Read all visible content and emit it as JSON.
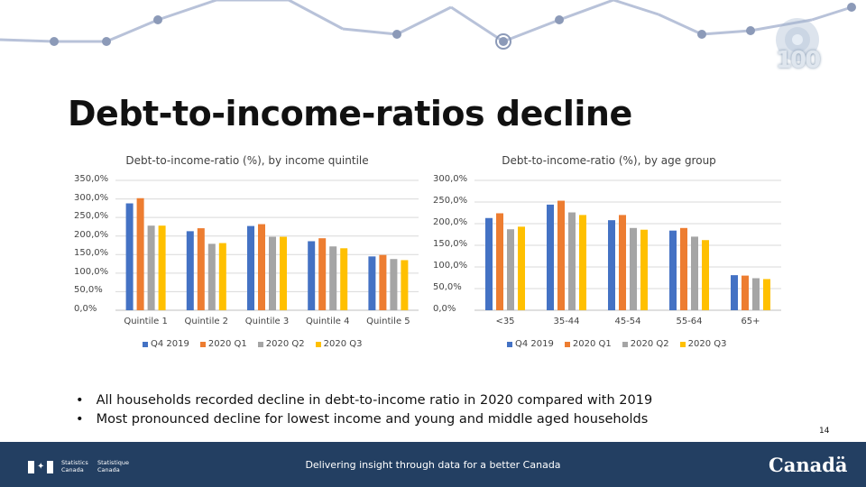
{
  "slide": {
    "title": "Debt-to-income-ratios decline",
    "page_number": "14",
    "logo_text": "100",
    "bullets": [
      "All households recorded decline in debt-to-income ratio in 2020 compared with 2019",
      "Most pronounced decline for lowest income and young and middle aged households"
    ]
  },
  "footer": {
    "agency_en": [
      "Statistics",
      "Canada"
    ],
    "agency_fr": [
      "Statistique",
      "Canada"
    ],
    "tagline": "Delivering insight through data for a better Canada",
    "wordmark": "Canadä"
  },
  "colors": {
    "Q4 2019": "#4472c4",
    "2020 Q1": "#ed7d31",
    "2020 Q2": "#a5a5a5",
    "2020 Q3": "#ffc000",
    "deco_line": "#b8c2d9",
    "deco_dot": "#8c9ab8",
    "footer": "#233f62"
  },
  "chart_data": [
    {
      "type": "bar",
      "title": "Debt-to-income-ratio (%), by income quintile",
      "categories": [
        "Quintile 1",
        "Quintile 2",
        "Quintile 3",
        "Quintile 4",
        "Quintile 5"
      ],
      "ylim": [
        0,
        350
      ],
      "yticks": [
        0,
        50,
        100,
        150,
        200,
        250,
        300,
        350
      ],
      "ytick_labels": [
        "0,0%",
        "50,0%",
        "100,0%",
        "150,0%",
        "200,0%",
        "250,0%",
        "300,0%",
        "350,0%"
      ],
      "legend": "bottom",
      "series": [
        {
          "name": "Q4 2019",
          "values": [
            288,
            213,
            227,
            186,
            145
          ]
        },
        {
          "name": "2020 Q1",
          "values": [
            302,
            221,
            232,
            194,
            149
          ]
        },
        {
          "name": "2020 Q2",
          "values": [
            228,
            179,
            198,
            172,
            138
          ]
        },
        {
          "name": "2020 Q3",
          "values": [
            228,
            181,
            198,
            167,
            135
          ]
        }
      ]
    },
    {
      "type": "bar",
      "title": "Debt-to-income-ratio (%), by age group",
      "categories": [
        "<35",
        "35-44",
        "45-54",
        "55-64",
        "65+"
      ],
      "ylim": [
        0,
        300
      ],
      "yticks": [
        0,
        50,
        100,
        150,
        200,
        250,
        300
      ],
      "ytick_labels": [
        "0,0%",
        "50,0%",
        "100,0%",
        "150,0%",
        "200,0%",
        "250,0%",
        "300,0%"
      ],
      "legend": "bottom",
      "series": [
        {
          "name": "Q4 2019",
          "values": [
            213,
            244,
            208,
            184,
            81
          ]
        },
        {
          "name": "2020 Q1",
          "values": [
            224,
            253,
            220,
            190,
            80
          ]
        },
        {
          "name": "2020 Q2",
          "values": [
            187,
            226,
            190,
            170,
            74
          ]
        },
        {
          "name": "2020 Q3",
          "values": [
            193,
            220,
            186,
            162,
            72
          ]
        }
      ]
    }
  ]
}
